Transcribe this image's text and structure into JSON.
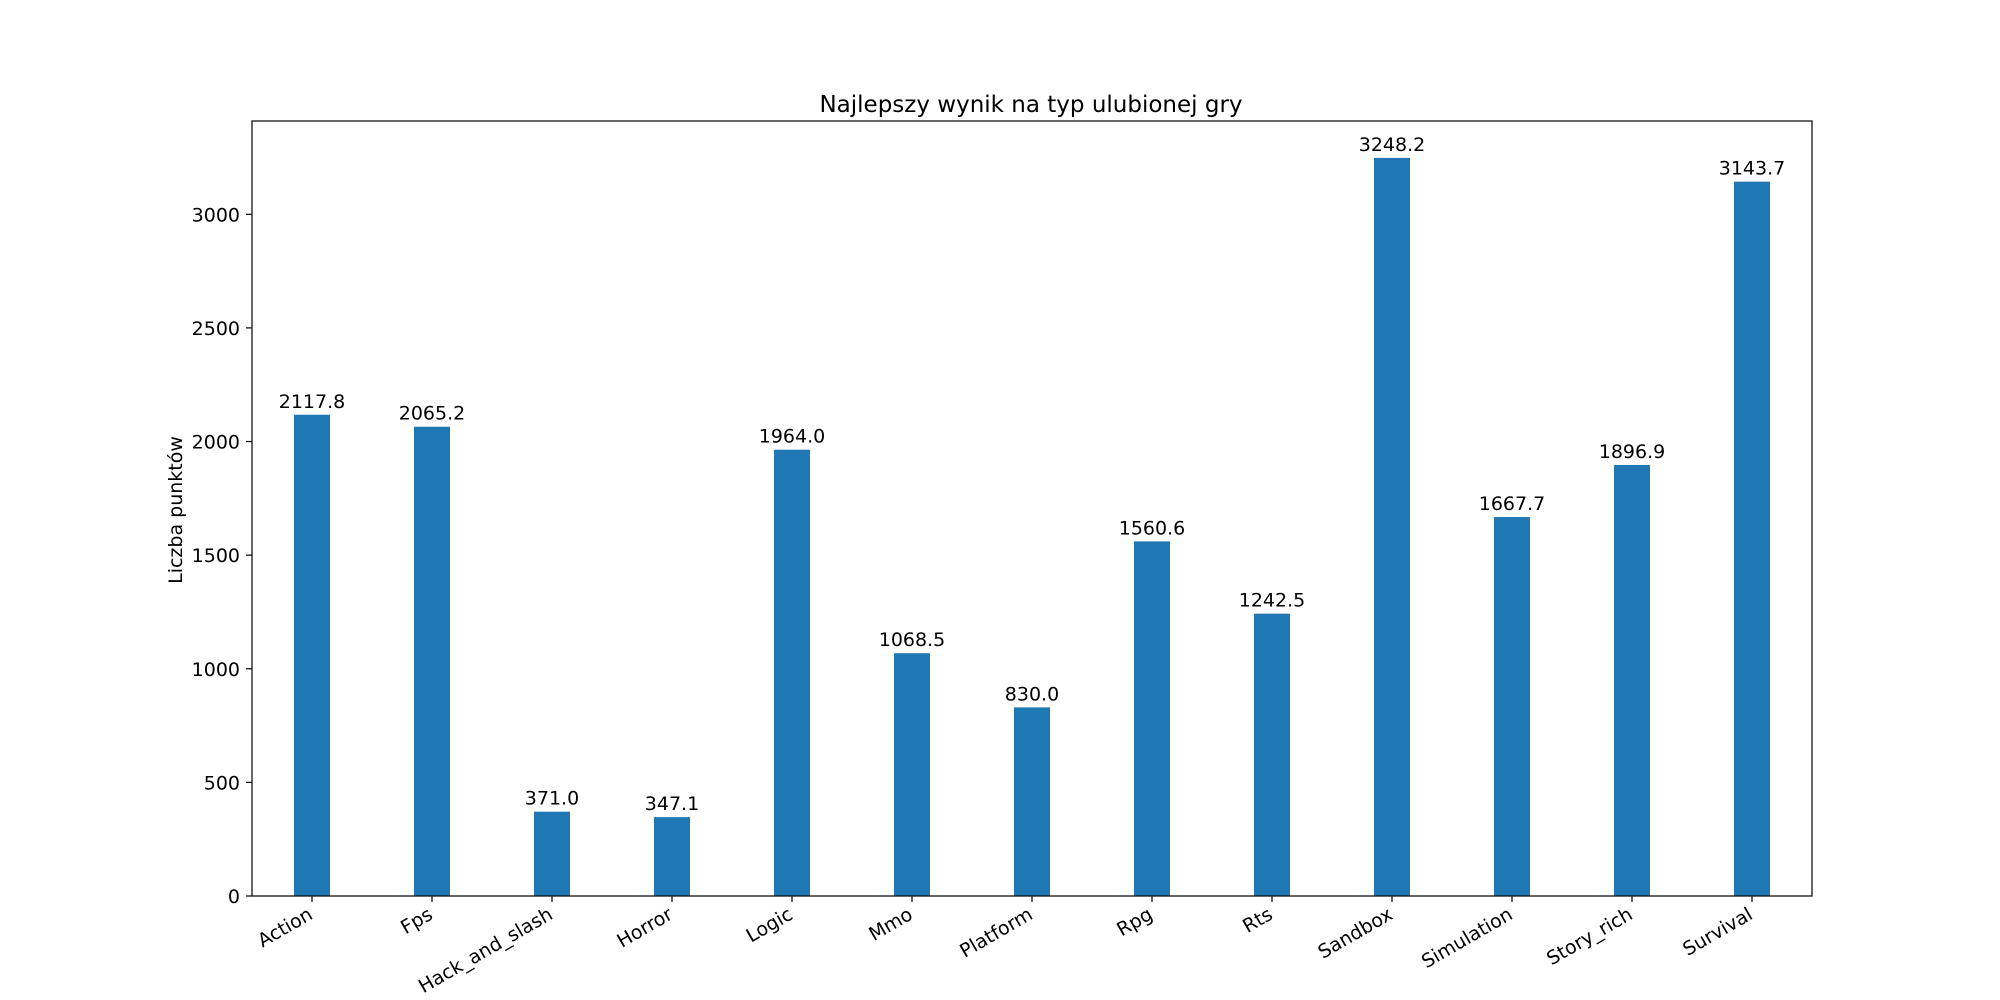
{
  "chart_data": {
    "type": "bar",
    "title": "Najlepszy wynik na typ ulubionej gry",
    "xlabel": "",
    "ylabel": "Liczba punktów",
    "categories": [
      "Action",
      "Fps",
      "Hack_and_slash",
      "Horror",
      "Logic",
      "Mmo",
      "Platform",
      "Rpg",
      "Rts",
      "Sandbox",
      "Simulation",
      "Story_rich",
      "Survival"
    ],
    "values": [
      2117.8,
      2065.2,
      371.0,
      347.1,
      1964.0,
      1068.5,
      830.0,
      1560.6,
      1242.5,
      3248.2,
      1667.7,
      1896.9,
      3143.7
    ],
    "value_labels": [
      "2117.8",
      "2065.2",
      "371.0",
      "347.1",
      "1964.0",
      "1068.5",
      "830.0",
      "1560.6",
      "1242.5",
      "3248.2",
      "1667.7",
      "1896.9",
      "3143.7"
    ],
    "yticks": [
      0,
      500,
      1000,
      1500,
      2000,
      2500,
      3000
    ],
    "ylim": [
      0,
      3410.6
    ],
    "grid": false,
    "legend": "none",
    "bar_color": "#1f77b4",
    "xtick_rotation_deg": -30
  }
}
